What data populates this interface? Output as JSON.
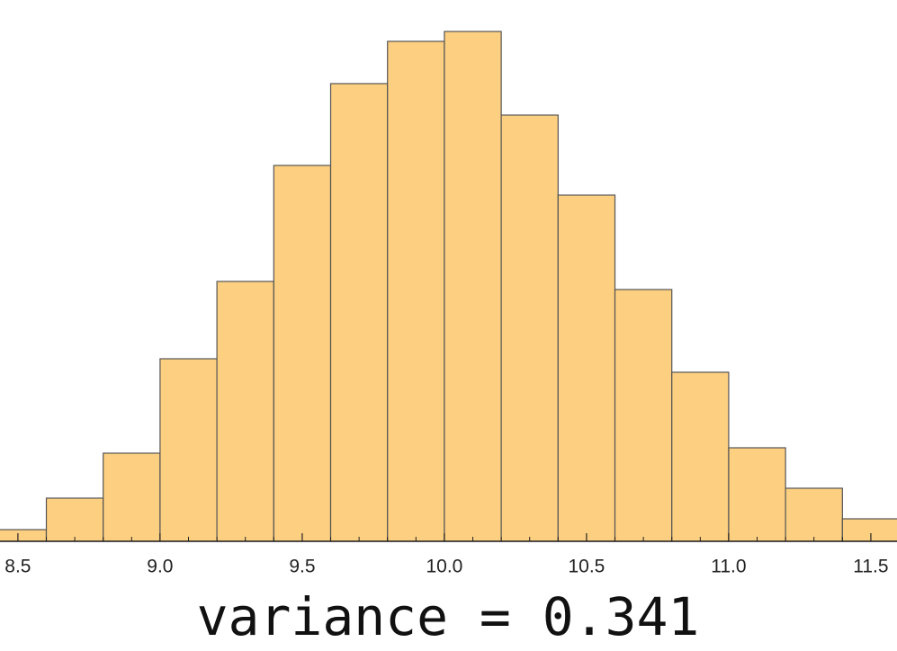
{
  "chart_data": {
    "type": "histogram",
    "annotation": "variance = 0.341",
    "bins": [
      8.4,
      8.6,
      8.8,
      9.0,
      9.2,
      9.4,
      9.6,
      9.8,
      10.0,
      10.2,
      10.4,
      10.6,
      10.8,
      11.0,
      11.2,
      11.4,
      11.6
    ],
    "values": [
      13,
      48,
      98,
      203,
      289,
      418,
      509,
      556,
      567,
      474,
      385,
      280,
      188,
      104,
      59,
      25
    ],
    "color": "#fdcf80",
    "xlim": [
      8.437,
      11.592
    ],
    "ylim": [
      0,
      580
    ],
    "xticks": [
      8.5,
      {
        "value": 9,
        "label": "9.0"
      },
      9.5,
      {
        "value": 10,
        "label": "10.0"
      },
      10.5,
      {
        "value": 11,
        "label": "11.0"
      },
      11.5
    ],
    "xminorticks": [
      8.6,
      8.7,
      8.8,
      8.9,
      9.1,
      9.2,
      9.3,
      9.4,
      9.6,
      9.7,
      9.8,
      9.9,
      10.1,
      10.2,
      10.3,
      10.4,
      10.6,
      10.7,
      10.8,
      10.9,
      11.1,
      11.2,
      11.3,
      11.4
    ]
  }
}
